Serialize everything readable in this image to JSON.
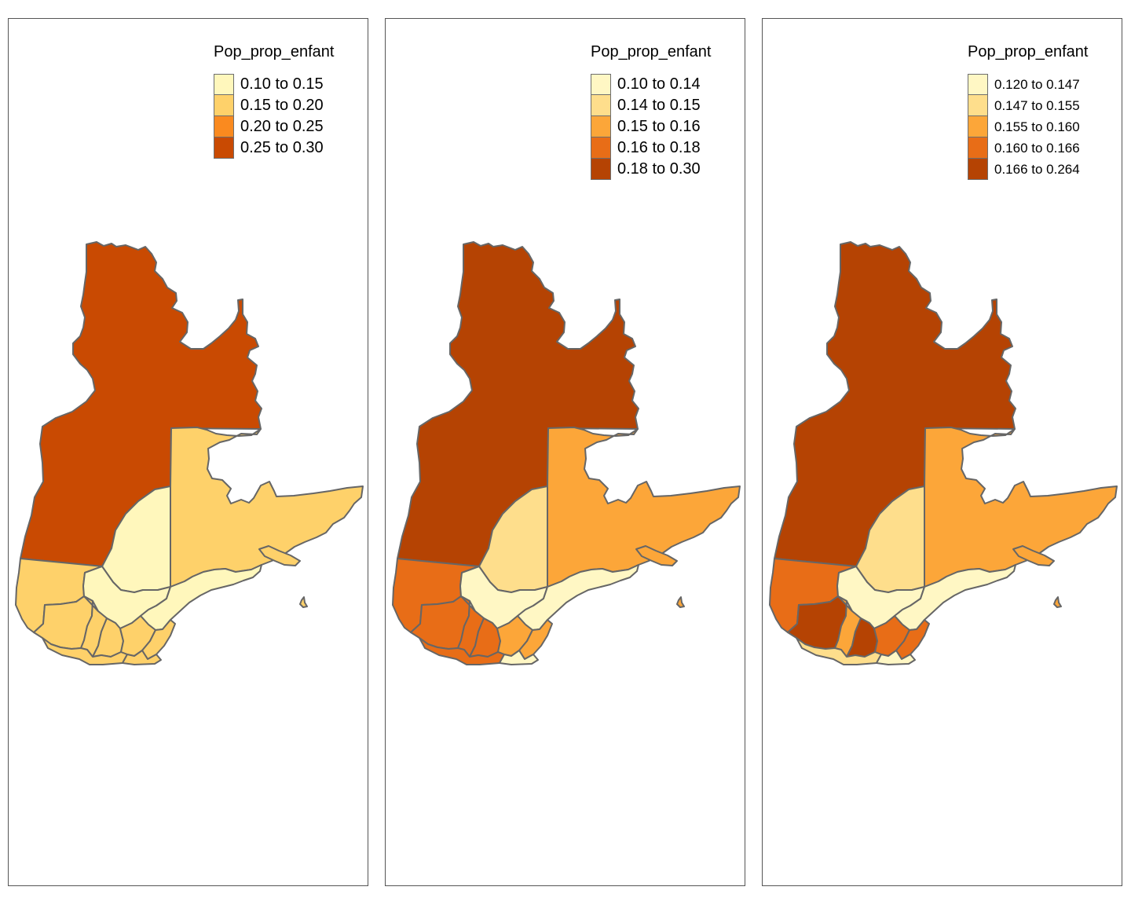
{
  "maps": [
    {
      "legend_title": "Pop_prop_enfant",
      "classes": [
        {
          "label": "0.10 to 0.15",
          "color": "#fff7bc"
        },
        {
          "label": "0.15 to 0.20",
          "color": "#fed16a"
        },
        {
          "label": "0.20 to 0.25",
          "color": "#fa8a1f"
        },
        {
          "label": "0.25 to 0.30",
          "color": "#c94a02"
        }
      ],
      "region_class": {
        "north": 3,
        "center": 0,
        "east": 1,
        "west": 1,
        "bas": 0,
        "gaspesie": 0,
        "island": 1,
        "s1": 1,
        "s2": 1,
        "s3": 1,
        "s4": 1,
        "s5": 1,
        "s6": 1,
        "s7": 1
      }
    },
    {
      "legend_title": "Pop_prop_enfant",
      "classes": [
        {
          "label": "0.10 to 0.14",
          "color": "#fff7c4"
        },
        {
          "label": "0.14 to 0.15",
          "color": "#fede8c"
        },
        {
          "label": "0.15 to 0.16",
          "color": "#fca639"
        },
        {
          "label": "0.16 to 0.18",
          "color": "#e86d17"
        },
        {
          "label": "0.18 to 0.30",
          "color": "#b54303"
        }
      ],
      "region_class": {
        "north": 4,
        "center": 1,
        "east": 2,
        "west": 3,
        "bas": 0,
        "gaspesie": 0,
        "island": 2,
        "s1": 3,
        "s2": 3,
        "s3": 3,
        "s4": 2,
        "s5": 3,
        "s6": 2,
        "s7": 0
      }
    },
    {
      "legend_title": "Pop_prop_enfant",
      "classes": [
        {
          "label": "0.120 to 0.147",
          "color": "#fff7c4"
        },
        {
          "label": "0.147 to 0.155",
          "color": "#fede8c"
        },
        {
          "label": "0.155 to 0.160",
          "color": "#fca639"
        },
        {
          "label": "0.160 to 0.166",
          "color": "#e86d17"
        },
        {
          "label": "0.166 to 0.264",
          "color": "#b54303"
        }
      ],
      "region_class": {
        "north": 4,
        "center": 1,
        "east": 2,
        "west": 3,
        "bas": 0,
        "gaspesie": 0,
        "island": 2,
        "s1": 4,
        "s2": 2,
        "s3": 4,
        "s4": 3,
        "s5": 1,
        "s6": 3,
        "s7": 0
      }
    }
  ]
}
